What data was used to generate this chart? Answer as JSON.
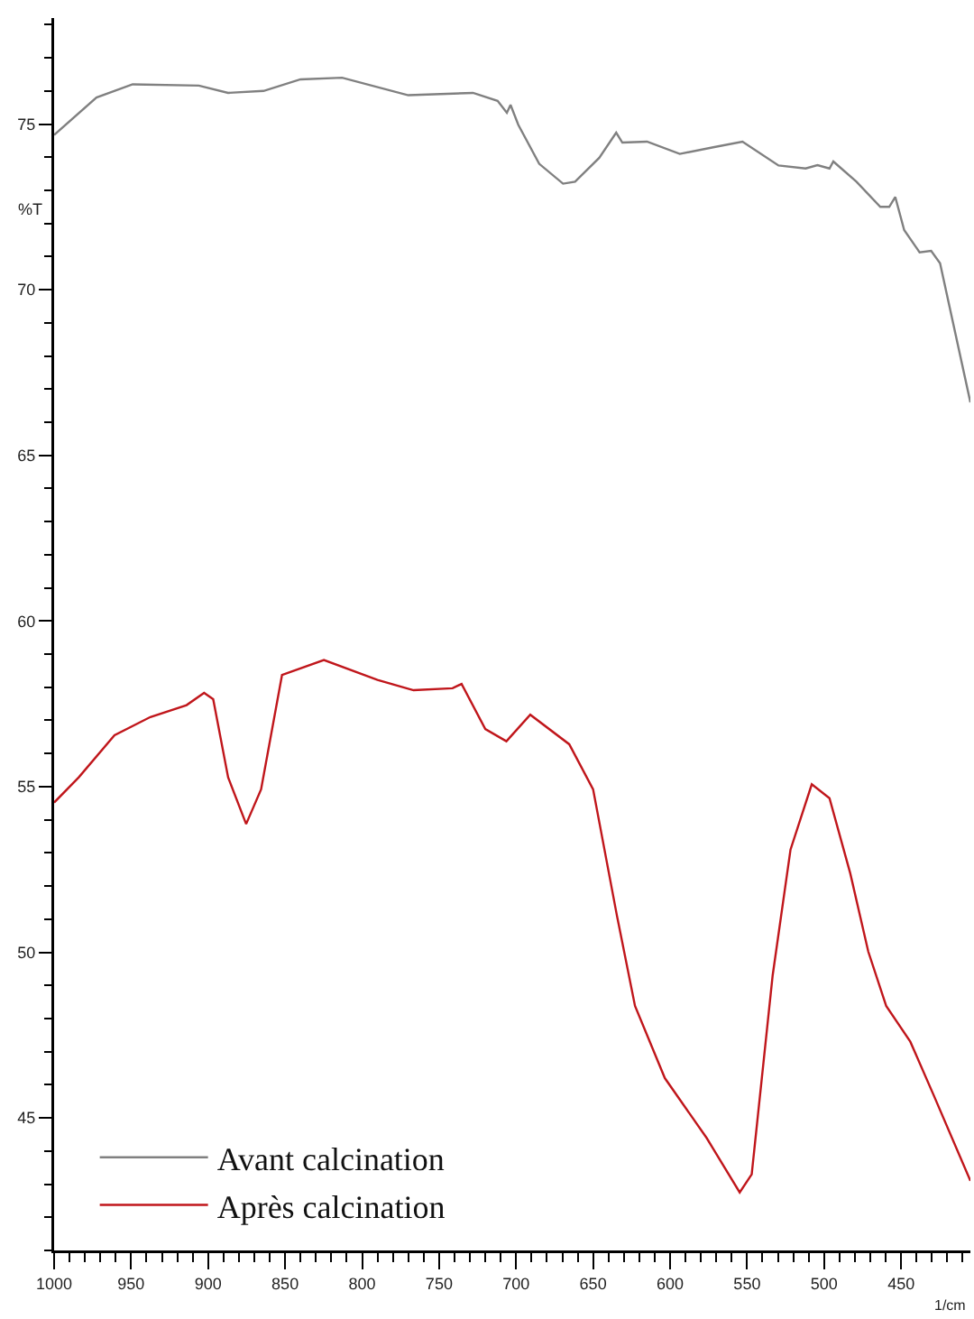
{
  "chart_data": {
    "type": "line",
    "ylabel": "%T",
    "xlabel": "1/cm",
    "xlim": [
      1000,
      405
    ],
    "ylim": [
      41,
      78.2
    ],
    "xticks": [
      1000,
      950,
      900,
      850,
      800,
      750,
      700,
      650,
      600,
      550,
      500,
      450
    ],
    "yticks": [
      45,
      50,
      55,
      60,
      65,
      70,
      75
    ],
    "grid": false,
    "legend": "bottom left",
    "marker": "none",
    "line_style": "solid",
    "series": [
      {
        "name": "Avant calcination",
        "color": "#808080",
        "x": [
          1000,
          972.5,
          949,
          906,
          887,
          864,
          840,
          813,
          770,
          728,
          712,
          706,
          703.6,
          698.6,
          685,
          669.5,
          661.7,
          646,
          635,
          631,
          615,
          593.7,
          572,
          553,
          529.6,
          512,
          504.3,
          496.5,
          494,
          479,
          463.5,
          457.7,
          453.8,
          448,
          438,
          430.5,
          424.7,
          405
        ],
        "values": [
          74.67,
          75.8,
          76.2,
          76.16,
          75.94,
          76.0,
          76.35,
          76.4,
          75.87,
          75.94,
          75.7,
          75.34,
          75.58,
          74.98,
          73.8,
          73.2,
          73.26,
          73.98,
          74.74,
          74.44,
          74.47,
          74.1,
          74.3,
          74.47,
          73.75,
          73.66,
          73.76,
          73.66,
          73.87,
          73.26,
          72.5,
          72.5,
          72.8,
          71.8,
          71.13,
          71.17,
          70.8,
          66.6
        ]
      },
      {
        "name": "Après calcination",
        "color": "#c0161b",
        "x": [
          1000,
          984,
          960.8,
          937.5,
          914,
          902.6,
          896.7,
          887,
          875.3,
          865.6,
          852,
          824.8,
          790,
          766.6,
          741.3,
          735.4,
          720,
          706.3,
          690.8,
          665.5,
          650,
          634.5,
          622.8,
          603.4,
          576.2,
          554.8,
          547,
          533.4,
          521.8,
          508,
          496.5,
          483,
          471.3,
          459.7,
          444,
          428.6,
          405
        ],
        "values": [
          54.52,
          55.28,
          56.55,
          57.1,
          57.46,
          57.83,
          57.64,
          55.28,
          53.87,
          54.92,
          58.37,
          58.82,
          58.22,
          57.91,
          57.97,
          58.1,
          56.74,
          56.37,
          57.17,
          56.28,
          54.92,
          51.1,
          48.38,
          46.2,
          44.39,
          42.75,
          43.3,
          49.3,
          53.1,
          55.07,
          54.65,
          52.38,
          50.02,
          48.38,
          47.3,
          45.66,
          43.1
        ]
      }
    ]
  }
}
